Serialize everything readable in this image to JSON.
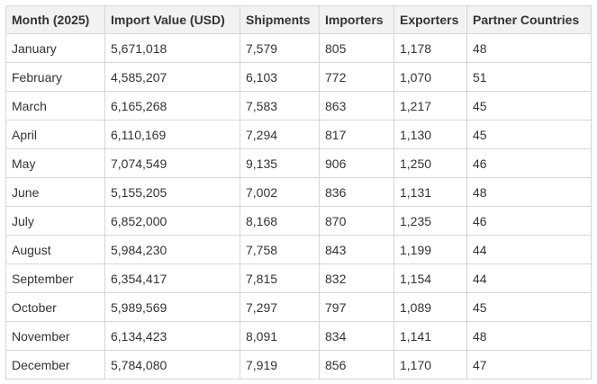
{
  "table": {
    "columns": [
      "Month (2025)",
      "Import Value (USD)",
      "Shipments",
      "Importers",
      "Exporters",
      "Partner Countries"
    ],
    "rows": [
      [
        "January",
        "5,671,018",
        "7,579",
        "805",
        "1,178",
        "48"
      ],
      [
        "February",
        "4,585,207",
        "6,103",
        "772",
        "1,070",
        "51"
      ],
      [
        "March",
        "6,165,268",
        "7,583",
        "863",
        "1,217",
        "45"
      ],
      [
        "April",
        "6,110,169",
        "7,294",
        "817",
        "1,130",
        "45"
      ],
      [
        "May",
        "7,074,549",
        "9,135",
        "906",
        "1,250",
        "46"
      ],
      [
        "June",
        "5,155,205",
        "7,002",
        "836",
        "1,131",
        "48"
      ],
      [
        "July",
        "6,852,000",
        "8,168",
        "870",
        "1,235",
        "46"
      ],
      [
        "August",
        "5,984,230",
        "7,758",
        "843",
        "1,199",
        "44"
      ],
      [
        "September",
        "6,354,417",
        "7,815",
        "832",
        "1,154",
        "44"
      ],
      [
        "October",
        "5,989,569",
        "7,297",
        "797",
        "1,089",
        "45"
      ],
      [
        "November",
        "6,134,423",
        "8,091",
        "834",
        "1,141",
        "48"
      ],
      [
        "December",
        "5,784,080",
        "7,919",
        "856",
        "1,170",
        "47"
      ]
    ]
  }
}
